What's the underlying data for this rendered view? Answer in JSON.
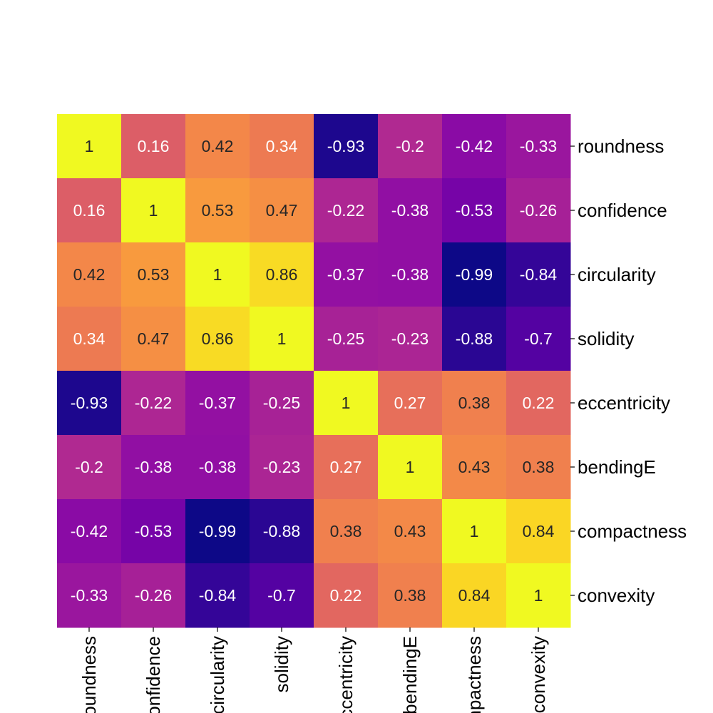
{
  "chart_data": {
    "type": "heatmap",
    "title": "",
    "colormap": "plasma",
    "vmin": -0.99,
    "vmax": 1,
    "row_labels": [
      "roundness",
      "confidence",
      "circularity",
      "solidity",
      "eccentricity",
      "bendingE",
      "compactness",
      "convexity"
    ],
    "col_labels": [
      "roundness",
      "confidence",
      "circularity",
      "solidity",
      "eccentricity",
      "bendingE",
      "compactness",
      "convexity"
    ],
    "row_label_position": "right",
    "col_label_position": "bottom",
    "values": [
      [
        1,
        0.16,
        0.42,
        0.34,
        -0.93,
        -0.2,
        -0.42,
        -0.33
      ],
      [
        0.16,
        1,
        0.53,
        0.47,
        -0.22,
        -0.38,
        -0.53,
        -0.26
      ],
      [
        0.42,
        0.53,
        1,
        0.86,
        -0.37,
        -0.38,
        -0.99,
        -0.84
      ],
      [
        0.34,
        0.47,
        0.86,
        1,
        -0.25,
        -0.23,
        -0.88,
        -0.7
      ],
      [
        -0.93,
        -0.22,
        -0.37,
        -0.25,
        1,
        0.27,
        0.38,
        0.22
      ],
      [
        -0.2,
        -0.38,
        -0.38,
        -0.23,
        0.27,
        1,
        0.43,
        0.38
      ],
      [
        -0.42,
        -0.53,
        -0.99,
        -0.88,
        0.38,
        0.43,
        1,
        0.84
      ],
      [
        -0.33,
        -0.26,
        -0.84,
        -0.7,
        0.22,
        0.38,
        0.84,
        1
      ]
    ],
    "annotations": [
      [
        "1",
        "0.16",
        "0.42",
        "0.34",
        "-0.93",
        "-0.2",
        "-0.42",
        "-0.33"
      ],
      [
        "0.16",
        "1",
        "0.53",
        "0.47",
        "-0.22",
        "-0.38",
        "-0.53",
        "-0.26"
      ],
      [
        "0.42",
        "0.53",
        "1",
        "0.86",
        "-0.37",
        "-0.38",
        "-0.99",
        "-0.84"
      ],
      [
        "0.34",
        "0.47",
        "0.86",
        "1",
        "-0.25",
        "-0.23",
        "-0.88",
        "-0.7"
      ],
      [
        "-0.93",
        "-0.22",
        "-0.37",
        "-0.25",
        "1",
        "0.27",
        "0.38",
        "0.22"
      ],
      [
        "-0.2",
        "-0.38",
        "-0.38",
        "-0.23",
        "0.27",
        "1",
        "0.43",
        "0.38"
      ],
      [
        "-0.42",
        "-0.53",
        "-0.99",
        "-0.88",
        "0.38",
        "0.43",
        "1",
        "0.84"
      ],
      [
        "-0.33",
        "-0.26",
        "-0.84",
        "-0.7",
        "0.22",
        "0.38",
        "0.84",
        "1"
      ]
    ]
  }
}
